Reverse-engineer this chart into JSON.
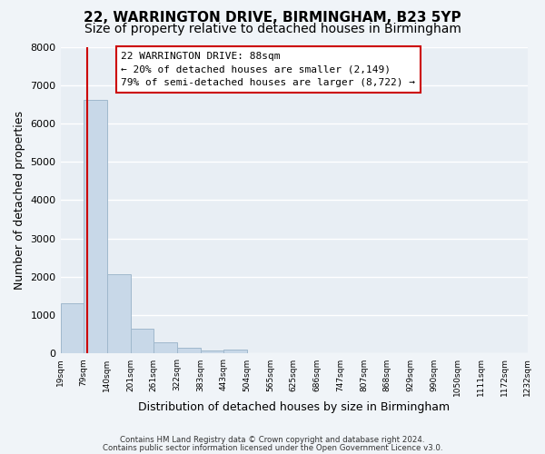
{
  "title": "22, WARRINGTON DRIVE, BIRMINGHAM, B23 5YP",
  "subtitle": "Size of property relative to detached houses in Birmingham",
  "xlabel": "Distribution of detached houses by size in Birmingham",
  "ylabel": "Number of detached properties",
  "bar_edges": [
    19,
    79,
    140,
    201,
    261,
    322,
    383,
    443,
    504,
    565,
    625,
    686,
    747,
    807,
    868,
    929,
    990,
    1050,
    1111,
    1172,
    1232
  ],
  "bar_heights": [
    1320,
    6620,
    2080,
    640,
    300,
    145,
    90,
    95,
    0,
    0,
    0,
    0,
    0,
    0,
    0,
    0,
    0,
    0,
    0,
    0
  ],
  "bar_color": "#c8d8e8",
  "bar_edgecolor": "#a0b8cc",
  "property_line_x": 88,
  "property_line_color": "#cc0000",
  "ylim": [
    0,
    8000
  ],
  "yticks": [
    0,
    1000,
    2000,
    3000,
    4000,
    5000,
    6000,
    7000,
    8000
  ],
  "annotation_title": "22 WARRINGTON DRIVE: 88sqm",
  "annotation_line1": "← 20% of detached houses are smaller (2,149)",
  "annotation_line2": "79% of semi-detached houses are larger (8,722) →",
  "footer1": "Contains HM Land Registry data © Crown copyright and database right 2024.",
  "footer2": "Contains public sector information licensed under the Open Government Licence v3.0.",
  "bg_color": "#f0f4f8",
  "plot_bg_color": "#e8eef4",
  "grid_color": "#ffffff",
  "title_fontsize": 11,
  "subtitle_fontsize": 10
}
